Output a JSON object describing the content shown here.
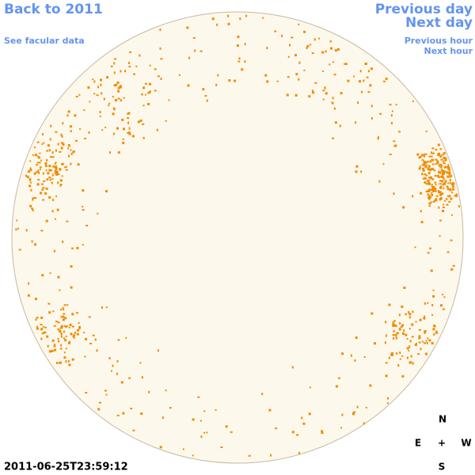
{
  "links": {
    "back": "Back to 2011",
    "facular": "See facular data",
    "previous_day": "Previous day",
    "next_day": "Next day",
    "previous_hour": "Previous hour",
    "next_hour": "Next hour"
  },
  "timestamp": "2011-06-25T23:59:12",
  "compass": {
    "north": "N",
    "east": "E",
    "center": "+",
    "west": "W",
    "south": "S"
  }
}
